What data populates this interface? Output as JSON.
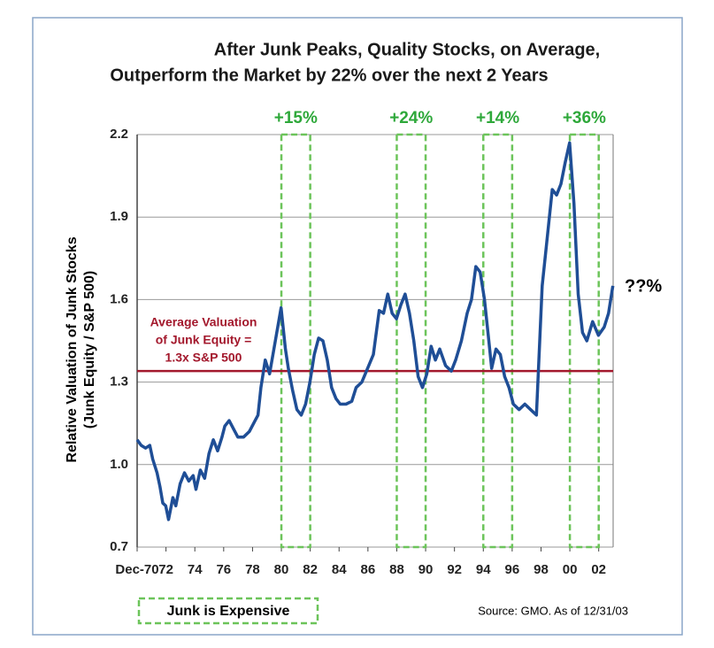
{
  "chart_data": {
    "type": "line",
    "title": [
      "After Junk Peaks, Quality Stocks, on Average,",
      "Outperform the Market by 22% over the next 2 Years"
    ],
    "y_label": [
      "Relative Valuation of Junk Stocks",
      "(Junk Equity / S&P 500)"
    ],
    "x": [
      1970.92,
      1971.2,
      1971.5,
      1971.8,
      1972.0,
      1972.3,
      1972.5,
      1972.7,
      1972.9,
      1973.1,
      1973.4,
      1973.6,
      1973.9,
      1974.2,
      1974.5,
      1974.8,
      1975.0,
      1975.3,
      1975.6,
      1975.9,
      1976.2,
      1976.5,
      1976.8,
      1977.0,
      1977.3,
      1977.6,
      1977.9,
      1978.3,
      1978.7,
      1979.0,
      1979.3,
      1979.5,
      1979.8,
      1980.1,
      1980.5,
      1980.9,
      1981.2,
      1981.4,
      1981.7,
      1982.0,
      1982.3,
      1982.6,
      1982.9,
      1983.2,
      1983.5,
      1983.8,
      1984.1,
      1984.4,
      1984.7,
      1985.0,
      1985.4,
      1985.8,
      1986.1,
      1986.5,
      1986.9,
      1987.3,
      1987.7,
      1988.0,
      1988.3,
      1988.6,
      1988.9,
      1989.2,
      1989.5,
      1989.8,
      1990.1,
      1990.4,
      1990.7,
      1991.0,
      1991.3,
      1991.6,
      1991.9,
      1992.3,
      1992.7,
      1993.0,
      1993.4,
      1993.8,
      1994.1,
      1994.4,
      1994.7,
      1995.0,
      1995.3,
      1995.5,
      1995.8,
      1996.1,
      1996.4,
      1996.7,
      1997.0,
      1997.4,
      1997.8,
      1998.2,
      1998.6,
      1999.0,
      1999.3,
      1999.7,
      2000.0,
      2000.3,
      2000.6,
      2000.9,
      2001.2,
      2001.5,
      2001.8,
      2002.1,
      2002.5,
      2002.9,
      2003.3,
      2003.6,
      2003.9
    ],
    "series": [
      {
        "color": "#1f4e96",
        "values": [
          1.09,
          1.07,
          1.06,
          1.07,
          1.02,
          0.97,
          0.92,
          0.86,
          0.85,
          0.8,
          0.88,
          0.85,
          0.93,
          0.97,
          0.94,
          0.96,
          0.91,
          0.98,
          0.95,
          1.04,
          1.09,
          1.05,
          1.1,
          1.14,
          1.16,
          1.13,
          1.1,
          1.1,
          1.12,
          1.15,
          1.18,
          1.28,
          1.38,
          1.33,
          1.45,
          1.57,
          1.42,
          1.35,
          1.27,
          1.2,
          1.18,
          1.22,
          1.3,
          1.4,
          1.46,
          1.45,
          1.38,
          1.28,
          1.24,
          1.22,
          1.22,
          1.23,
          1.28,
          1.3,
          1.35,
          1.4,
          1.56,
          1.55,
          1.62,
          1.55,
          1.53,
          1.58,
          1.62,
          1.55,
          1.45,
          1.32,
          1.28,
          1.33,
          1.43,
          1.38,
          1.42,
          1.36,
          1.34,
          1.38,
          1.45,
          1.55,
          1.6,
          1.72,
          1.7,
          1.6,
          1.45,
          1.35,
          1.42,
          1.4,
          1.32,
          1.28,
          1.22,
          1.2,
          1.22,
          1.2,
          1.18,
          1.65,
          1.8,
          2.0,
          1.98,
          2.02,
          2.1,
          2.17,
          1.95,
          1.62,
          1.48,
          1.45,
          1.52,
          1.47,
          1.5,
          1.55,
          1.65
        ]
      }
    ],
    "xlim": [
      1970.92,
      2003.92
    ],
    "xticks": [
      {
        "value": 1970.92,
        "label": "Dec-70"
      },
      {
        "value": 1972.92,
        "label": "72"
      },
      {
        "value": 1974.92,
        "label": "74"
      },
      {
        "value": 1976.92,
        "label": "76"
      },
      {
        "value": 1978.92,
        "label": "78"
      },
      {
        "value": 1980.92,
        "label": "80"
      },
      {
        "value": 1982.92,
        "label": "82"
      },
      {
        "value": 1984.92,
        "label": "84"
      },
      {
        "value": 1986.92,
        "label": "86"
      },
      {
        "value": 1988.92,
        "label": "88"
      },
      {
        "value": 1990.92,
        "label": "90"
      },
      {
        "value": 1992.92,
        "label": "92"
      },
      {
        "value": 1994.92,
        "label": "94"
      },
      {
        "value": 1996.92,
        "label": "96"
      },
      {
        "value": 1998.92,
        "label": "98"
      },
      {
        "value": 2000.92,
        "label": "00"
      },
      {
        "value": 2002.92,
        "label": "02"
      }
    ],
    "ylim": [
      0.7,
      2.2
    ],
    "yticks": [
      {
        "value": 0.7,
        "label": "0.7"
      },
      {
        "value": 1.0,
        "label": "1.0"
      },
      {
        "value": 1.3,
        "label": "1.3"
      },
      {
        "value": 1.6,
        "label": "1.6"
      },
      {
        "value": 1.9,
        "label": "1.9"
      },
      {
        "value": 2.2,
        "label": "2.2"
      }
    ],
    "grid": true,
    "average_line": {
      "value": 1.34,
      "color": "#a3182c",
      "label": [
        "Average Valuation",
        "of Junk Equity =",
        "1.3x S&P 500"
      ]
    },
    "highlights": [
      {
        "start": 1980.92,
        "end": 1982.92,
        "label": "+15%"
      },
      {
        "start": 1988.92,
        "end": 1990.92,
        "label": "+24%"
      },
      {
        "start": 1994.92,
        "end": 1996.92,
        "label": "+14%"
      },
      {
        "start": 2000.92,
        "end": 2002.92,
        "label": "+36%"
      }
    ],
    "highlight_color": "#6cc45a",
    "highlight_legend": "Junk is Expensive",
    "end_annotation": "??%",
    "source": "Source: GMO.  As of 12/31/03"
  }
}
